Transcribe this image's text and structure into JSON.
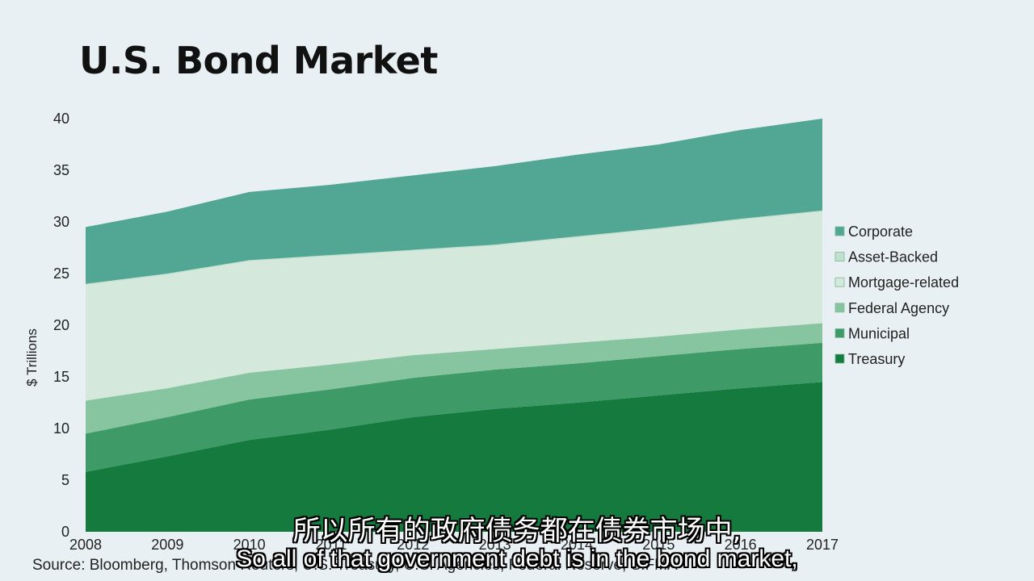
{
  "slide": {
    "title": "U.S. Bond Market",
    "source": "Source: Bloomberg, Thomson Reuters, U.S. Treasury, U.S. Agencies, Federal Reserve, SIFMA"
  },
  "subtitles": {
    "chinese": "所以所有的政府债务都在债券市场中,",
    "english": "So all of that government debt is in the bond market,"
  },
  "chart_data": {
    "type": "area",
    "stacked": true,
    "x": [
      2008,
      2009,
      2010,
      2011,
      2012,
      2013,
      2014,
      2015,
      2016,
      2017
    ],
    "ylabel": "$ Trillions",
    "ylim": [
      0,
      40
    ],
    "yticks": [
      0,
      5,
      10,
      15,
      20,
      25,
      30,
      35,
      40
    ],
    "legend_position": "right",
    "series": [
      {
        "name": "Treasury",
        "color": "#157a3e",
        "values": [
          5.8,
          7.3,
          8.9,
          9.9,
          11.1,
          11.9,
          12.5,
          13.2,
          13.9,
          14.5
        ]
      },
      {
        "name": "Municipal",
        "color": "#3e9a66",
        "values": [
          3.7,
          3.8,
          3.9,
          3.9,
          3.8,
          3.8,
          3.8,
          3.8,
          3.8,
          3.8
        ]
      },
      {
        "name": "Federal Agency",
        "color": "#86c5a0",
        "values": [
          3.2,
          2.8,
          2.6,
          2.4,
          2.2,
          2.0,
          2.0,
          1.9,
          1.9,
          1.9
        ]
      },
      {
        "name": "Mortgage-related",
        "color": "#d5e8dc",
        "values": [
          11.2,
          11.0,
          10.8,
          10.5,
          10.1,
          10.0,
          10.2,
          10.4,
          10.6,
          10.8
        ]
      },
      {
        "name": "Asset-Backed",
        "color": "#c1e0cd",
        "values": [
          0.1,
          0.1,
          0.1,
          0.1,
          0.1,
          0.1,
          0.1,
          0.1,
          0.1,
          0.1
        ]
      },
      {
        "name": "Corporate",
        "color": "#52a694",
        "values": [
          5.5,
          6.0,
          6.6,
          6.8,
          7.2,
          7.6,
          7.9,
          8.1,
          8.6,
          8.9
        ]
      }
    ]
  }
}
